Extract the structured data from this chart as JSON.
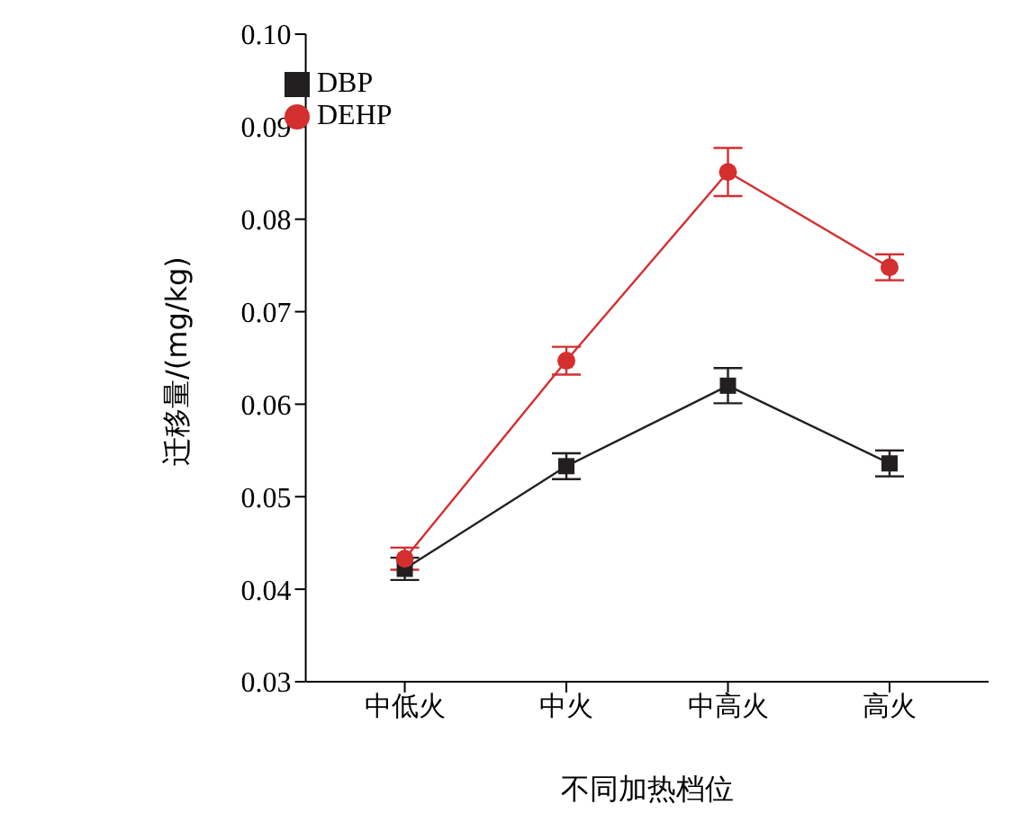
{
  "chart_data": {
    "type": "line",
    "xlabel": "不同加热档位",
    "ylabel": "迁移量/(mg/kg)",
    "categories": [
      "中低火",
      "中火",
      "中高火",
      "高火"
    ],
    "series": [
      {
        "name": "DBP",
        "color": "#231f20",
        "marker": "square",
        "values": [
          0.0422,
          0.0533,
          0.062,
          0.0536
        ],
        "errors": [
          0.0012,
          0.0014,
          0.0019,
          0.0014
        ]
      },
      {
        "name": "DEHP",
        "color": "#d32f2f",
        "marker": "circle",
        "values": [
          0.0433,
          0.0647,
          0.0851,
          0.0748
        ],
        "errors": [
          0.0012,
          0.0015,
          0.0026,
          0.0014
        ]
      }
    ],
    "ylim": [
      0.03,
      0.1
    ],
    "yticks": [
      0.03,
      0.04,
      0.05,
      0.06,
      0.07,
      0.08,
      0.09,
      {
        "value": 0.1,
        "label": "0.10"
      }
    ],
    "grid": false,
    "legend": "top left",
    "line_style": "solid"
  }
}
